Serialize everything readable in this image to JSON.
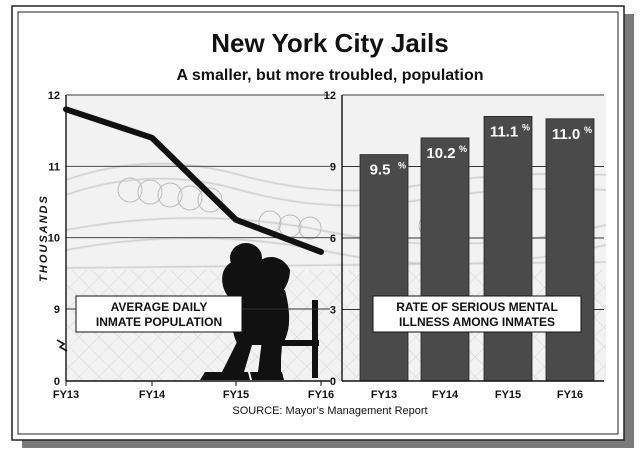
{
  "title": "New York City Jails",
  "subtitle": "A smaller, but more troubled, population",
  "source": "SOURCE: Mayor’s Management Report",
  "chart_data": [
    {
      "type": "line",
      "title": "AVERAGE DAILY INMATE POPULATION",
      "title_lines": [
        "AVERAGE DAILY",
        "INMATE POPULATION"
      ],
      "ylabel": "THOUSANDS",
      "x": [
        "FY13",
        "FY14",
        "FY15",
        "FY16"
      ],
      "values": [
        11.8,
        11.4,
        10.25,
        9.8
      ],
      "ylim": [
        0,
        12
      ],
      "axis_break": "between 0 and 9",
      "yticks": [
        "0",
        "9",
        "10",
        "11",
        "12"
      ],
      "grid": true,
      "line_color": "#111111"
    },
    {
      "type": "bar",
      "title": "RATE OF SERIOUS MENTAL ILLNESS AMONG INMATES",
      "title_lines": [
        "RATE OF SERIOUS MENTAL",
        "ILLNESS AMONG INMATES"
      ],
      "categories": [
        "FY13",
        "FY14",
        "FY15",
        "FY16"
      ],
      "values": [
        9.5,
        10.2,
        11.1,
        11.0
      ],
      "labels": [
        "9.5",
        "10.2",
        "11.1",
        "11.0"
      ],
      "unit": "%",
      "ylim": [
        0,
        12
      ],
      "yticks": [
        "0",
        "3",
        "6",
        "9",
        "12"
      ],
      "grid": true,
      "bar_color": "#4a4a4a"
    }
  ]
}
